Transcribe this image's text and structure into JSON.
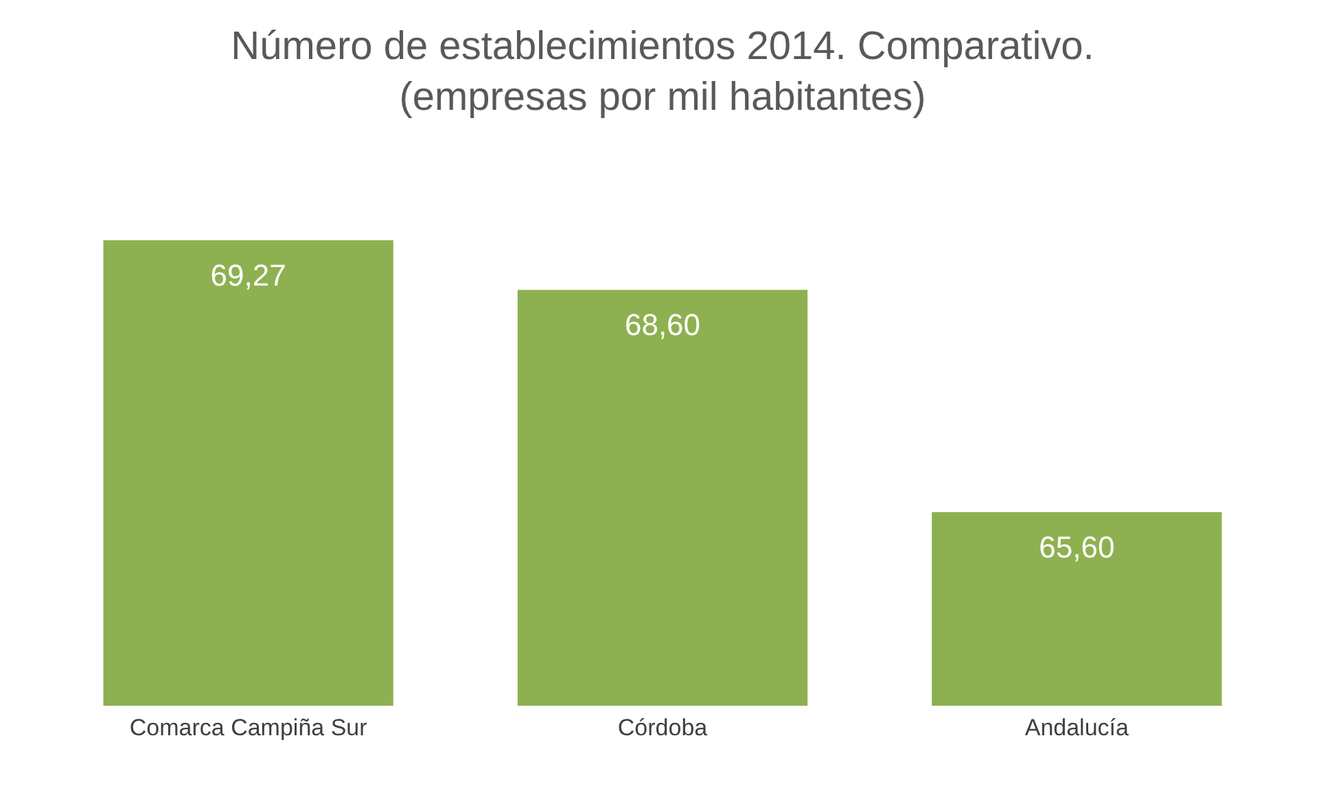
{
  "chart_data": {
    "type": "bar",
    "title": "Número de establecimientos 2014. Comparativo.",
    "subtitle": "(empresas por mil habitantes)",
    "categories": [
      "Comarca Campiña Sur",
      "Córdoba",
      "Andalucía"
    ],
    "values": [
      69.27,
      68.6,
      65.6
    ],
    "value_labels": [
      "69,27",
      "68,60",
      "65,60"
    ],
    "color": "#8db150",
    "grid": false
  }
}
